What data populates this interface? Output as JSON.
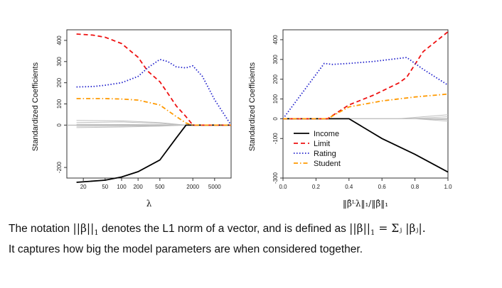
{
  "chart_data": [
    {
      "type": "line",
      "ylabel": "Standardized Coefficients",
      "xlabel": "λ",
      "xscale": "log",
      "xlim": [
        10,
        10000
      ],
      "ylim": [
        -250,
        450
      ],
      "xticks": [
        20,
        50,
        100,
        200,
        500,
        2000,
        5000
      ],
      "xtick_labels": [
        "20",
        "50",
        "100",
        "200",
        "500",
        "2000",
        "5000"
      ],
      "yticks": [
        -200,
        0,
        100,
        200,
        300,
        400
      ],
      "ytick_labels": [
        "-200",
        "0",
        "100",
        "200",
        "300",
        "400"
      ],
      "series": [
        {
          "name": "Income",
          "color": "#000000",
          "style": "solid",
          "x": [
            15,
            50,
            100,
            200,
            500,
            1000,
            1500,
            2000,
            3000,
            5000,
            10000
          ],
          "y": [
            -270,
            -260,
            -245,
            -220,
            -165,
            -60,
            0,
            0,
            0,
            0,
            0
          ]
        },
        {
          "name": "Limit",
          "color": "#ee1111",
          "style": "dashed",
          "x": [
            15,
            30,
            50,
            100,
            200,
            300,
            500,
            700,
            1000,
            1500,
            2000,
            3000,
            5000,
            10000
          ],
          "y": [
            430,
            425,
            415,
            385,
            320,
            255,
            205,
            150,
            90,
            40,
            0,
            0,
            0,
            0
          ]
        },
        {
          "name": "Rating",
          "color": "#2222cc",
          "style": "dotted",
          "x": [
            15,
            30,
            50,
            100,
            200,
            300,
            500,
            700,
            1000,
            1500,
            2000,
            3000,
            5000,
            10000
          ],
          "y": [
            180,
            182,
            188,
            200,
            230,
            270,
            310,
            300,
            275,
            270,
            280,
            230,
            120,
            0
          ]
        },
        {
          "name": "Student",
          "color": "#ff9900",
          "style": "dashdot",
          "x": [
            15,
            50,
            100,
            200,
            500,
            1000,
            1500,
            2000,
            3000,
            10000
          ],
          "y": [
            125,
            125,
            123,
            118,
            95,
            40,
            10,
            0,
            0,
            0
          ]
        },
        {
          "name": "",
          "color": "#c0c0c0",
          "style": "solid",
          "x": [
            15,
            100,
            500,
            1500,
            10000
          ],
          "y": [
            22,
            20,
            12,
            0,
            0
          ]
        },
        {
          "name": "",
          "color": "#c0c0c0",
          "style": "solid",
          "x": [
            15,
            100,
            500,
            1500,
            10000
          ],
          "y": [
            12,
            15,
            8,
            0,
            0
          ]
        },
        {
          "name": "",
          "color": "#c0c0c0",
          "style": "solid",
          "x": [
            15,
            100,
            500,
            1500,
            10000
          ],
          "y": [
            4,
            3,
            2,
            0,
            0
          ]
        },
        {
          "name": "",
          "color": "#c0c0c0",
          "style": "solid",
          "x": [
            15,
            100,
            500,
            1500,
            10000
          ],
          "y": [
            -6,
            -5,
            -3,
            0,
            0
          ]
        },
        {
          "name": "",
          "color": "#c0c0c0",
          "style": "solid",
          "x": [
            15,
            100,
            500,
            1500,
            10000
          ],
          "y": [
            -12,
            -9,
            -5,
            0,
            0
          ]
        }
      ]
    },
    {
      "type": "line",
      "ylabel": "Standardized Coefficients",
      "xlabel": "‖β̂ᴸλ‖₁/‖β̂‖₁",
      "xlim": [
        0,
        1
      ],
      "ylim": [
        -300,
        450
      ],
      "xticks": [
        0,
        0.2,
        0.4,
        0.6,
        0.8,
        1.0
      ],
      "xtick_labels": [
        "0.0",
        "0.2",
        "0.4",
        "0.6",
        "0.8",
        "1.0"
      ],
      "yticks": [
        -300,
        -100,
        0,
        100,
        200,
        300,
        400
      ],
      "ytick_labels": [
        "-300",
        "-100",
        "0",
        "100",
        "200",
        "300",
        "400"
      ],
      "legend": {
        "position": "inside-bottom-right",
        "entries": [
          "Income",
          "Limit",
          "Rating",
          "Student"
        ]
      },
      "series": [
        {
          "name": "Income",
          "color": "#000000",
          "style": "solid",
          "x": [
            0,
            0.4,
            0.6,
            0.8,
            1.0
          ],
          "y": [
            0,
            0,
            -100,
            -180,
            -270
          ]
        },
        {
          "name": "Limit",
          "color": "#ee1111",
          "style": "dashed",
          "x": [
            0,
            0.27,
            0.4,
            0.55,
            0.7,
            0.75,
            0.85,
            1.0
          ],
          "y": [
            0,
            0,
            70,
            120,
            180,
            210,
            340,
            440
          ]
        },
        {
          "name": "Rating",
          "color": "#2222cc",
          "style": "dotted",
          "x": [
            0,
            0.25,
            0.3,
            0.4,
            0.55,
            0.75,
            0.85,
            1.0
          ],
          "y": [
            0,
            280,
            275,
            280,
            290,
            310,
            250,
            170
          ]
        },
        {
          "name": "Student",
          "color": "#ff9900",
          "style": "dashdot",
          "x": [
            0,
            0.27,
            0.4,
            0.6,
            0.8,
            1.0
          ],
          "y": [
            0,
            0,
            60,
            90,
            110,
            125
          ]
        },
        {
          "name": "",
          "color": "#c0c0c0",
          "style": "solid",
          "x": [
            0,
            0.7,
            1.0
          ],
          "y": [
            0,
            0,
            20
          ]
        },
        {
          "name": "",
          "color": "#c0c0c0",
          "style": "solid",
          "x": [
            0,
            0.75,
            1.0
          ],
          "y": [
            0,
            0,
            10
          ]
        },
        {
          "name": "",
          "color": "#c0c0c0",
          "style": "solid",
          "x": [
            0,
            0.8,
            1.0
          ],
          "y": [
            0,
            0,
            -5
          ]
        },
        {
          "name": "",
          "color": "#c0c0c0",
          "style": "solid",
          "x": [
            0,
            0.8,
            1.0
          ],
          "y": [
            0,
            0,
            -12
          ]
        }
      ]
    }
  ],
  "caption": {
    "line1": {
      "prefix": "The notation",
      "norm_expr": "||β||",
      "norm_sub": "1",
      "middle": "denotes the L1 norm of a vector, and is defined as",
      "def_lhs": "||β||",
      "def_sub": "1",
      "def_rhs": "= Σⱼ |βⱼ|."
    },
    "line2": "It captures how big the model parameters are when considered together."
  }
}
